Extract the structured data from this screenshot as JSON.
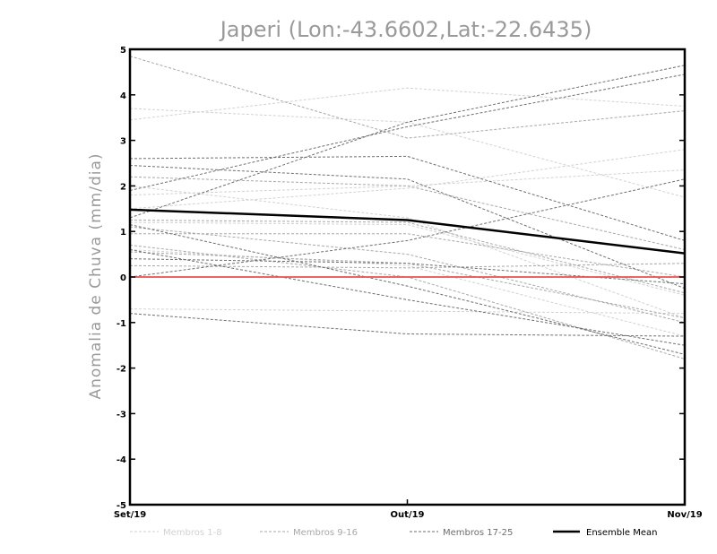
{
  "chart_data": {
    "type": "line",
    "title": "Japeri (Lon:-43.6602,Lat:-22.6435)",
    "xlabel": "",
    "ylabel": "Anomalia de Chuva (mm/dia)",
    "categories": [
      "Set/19",
      "Out/19",
      "Nov/19"
    ],
    "ylim": [
      -5,
      5
    ],
    "yticks": [
      -5,
      -4,
      -3,
      -2,
      -1,
      0,
      1,
      2,
      3,
      4,
      5
    ],
    "grid": false,
    "legend": "bottom",
    "reference_line": {
      "y": 0,
      "color": "#e8504a"
    },
    "groups": [
      {
        "name": "Membros 1-8",
        "color": "#d2d2d2",
        "dash": true
      },
      {
        "name": "Membros 9-16",
        "color": "#a8a8a8",
        "dash": true
      },
      {
        "name": "Membros 17-25",
        "color": "#6e6e6e",
        "dash": true
      },
      {
        "name": "Ensemble Mean",
        "color": "#000000",
        "dash": false
      }
    ],
    "series": [
      {
        "name": "Membro 1",
        "group": 0,
        "values": [
          3.7,
          3.4,
          1.75
        ]
      },
      {
        "name": "Membro 2",
        "group": 0,
        "values": [
          3.45,
          4.15,
          3.75
        ]
      },
      {
        "name": "Membro 3",
        "group": 0,
        "values": [
          1.5,
          1.95,
          2.8
        ]
      },
      {
        "name": "Membro 4",
        "group": 0,
        "values": [
          2.0,
          1.3,
          -0.9
        ]
      },
      {
        "name": "Membro 5",
        "group": 0,
        "values": [
          1.8,
          2.0,
          2.35
        ]
      },
      {
        "name": "Membro 6",
        "group": 0,
        "values": [
          -0.7,
          -0.75,
          -0.8
        ]
      },
      {
        "name": "Membro 7",
        "group": 0,
        "values": [
          1.2,
          1.15,
          -0.4
        ]
      },
      {
        "name": "Membro 8",
        "group": 0,
        "values": [
          0.6,
          0.25,
          -1.3
        ]
      },
      {
        "name": "Membro 9",
        "group": 1,
        "values": [
          4.85,
          3.05,
          3.65
        ]
      },
      {
        "name": "Membro 10",
        "group": 1,
        "values": [
          2.2,
          2.0,
          0.6
        ]
      },
      {
        "name": "Membro 11",
        "group": 1,
        "values": [
          1.25,
          1.2,
          -0.35
        ]
      },
      {
        "name": "Membro 12",
        "group": 1,
        "values": [
          0.95,
          0.95,
          0.0
        ]
      },
      {
        "name": "Membro 13",
        "group": 1,
        "values": [
          0.55,
          0.3,
          -0.9
        ]
      },
      {
        "name": "Membro 14",
        "group": 1,
        "values": [
          0.25,
          0.2,
          0.3
        ]
      },
      {
        "name": "Membro 15",
        "group": 1,
        "values": [
          1.1,
          0.5,
          -1.0
        ]
      },
      {
        "name": "Membro 16",
        "group": 1,
        "values": [
          0.7,
          0.0,
          -1.8
        ]
      },
      {
        "name": "Membro 17",
        "group": 2,
        "values": [
          2.6,
          2.65,
          0.8
        ]
      },
      {
        "name": "Membro 18",
        "group": 2,
        "values": [
          1.3,
          3.4,
          4.65
        ]
      },
      {
        "name": "Membro 19",
        "group": 2,
        "values": [
          1.9,
          3.3,
          4.45
        ]
      },
      {
        "name": "Membro 20",
        "group": 2,
        "values": [
          2.45,
          2.15,
          -0.25
        ]
      },
      {
        "name": "Membro 21",
        "group": 2,
        "values": [
          0.0,
          0.8,
          2.15
        ]
      },
      {
        "name": "Membro 22",
        "group": 2,
        "values": [
          0.4,
          0.3,
          -0.15
        ]
      },
      {
        "name": "Membro 23",
        "group": 2,
        "values": [
          -0.8,
          -1.25,
          -1.3
        ]
      },
      {
        "name": "Membro 24",
        "group": 2,
        "values": [
          0.6,
          -0.5,
          -1.5
        ]
      },
      {
        "name": "Membro 25",
        "group": 2,
        "values": [
          1.15,
          -0.2,
          -1.7
        ]
      },
      {
        "name": "Ensemble Mean",
        "group": 3,
        "values": [
          1.48,
          1.25,
          0.52
        ]
      }
    ]
  }
}
